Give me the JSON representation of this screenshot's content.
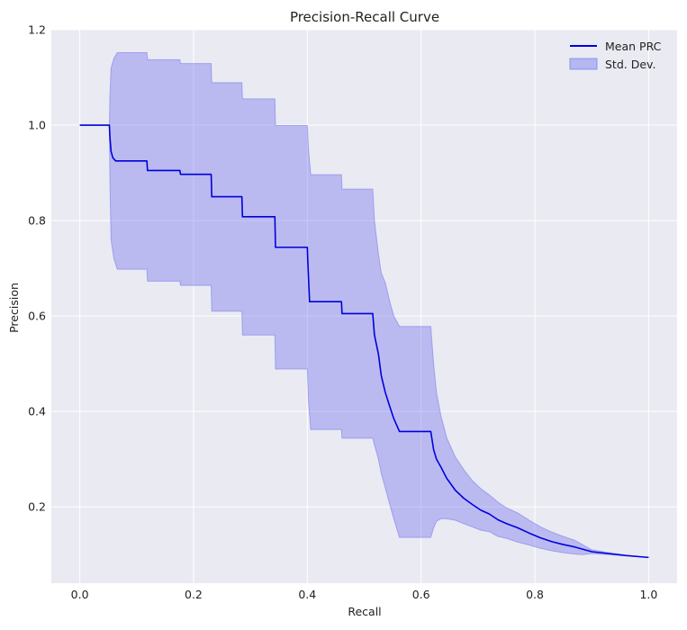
{
  "chart_data": {
    "type": "line",
    "title": "Precision-Recall Curve",
    "xlabel": "Recall",
    "ylabel": "Precision",
    "xlim": [
      -0.05,
      1.05
    ],
    "ylim": [
      0.04,
      1.2
    ],
    "grid": true,
    "legend_position": "top-right",
    "x_ticks": [
      0.0,
      0.2,
      0.4,
      0.6,
      0.8,
      1.0
    ],
    "x_tick_labels": [
      "0.0",
      "0.2",
      "0.4",
      "0.6",
      "0.8",
      "1.0"
    ],
    "y_ticks": [
      0.2,
      0.4,
      0.6,
      0.8,
      1.0,
      1.2
    ],
    "y_tick_labels": [
      "0.2",
      "0.4",
      "0.6",
      "0.8",
      "1.0",
      "1.2"
    ],
    "series": [
      {
        "name": "Mean PRC",
        "color": "#0000dd",
        "points": [
          [
            0.0,
            1.0
          ],
          [
            0.052,
            1.0
          ],
          [
            0.053,
            0.975
          ],
          [
            0.055,
            0.945
          ],
          [
            0.058,
            0.932
          ],
          [
            0.063,
            0.925
          ],
          [
            0.118,
            0.925
          ],
          [
            0.119,
            0.905
          ],
          [
            0.176,
            0.905
          ],
          [
            0.177,
            0.897
          ],
          [
            0.231,
            0.897
          ],
          [
            0.232,
            0.85
          ],
          [
            0.285,
            0.85
          ],
          [
            0.286,
            0.808
          ],
          [
            0.343,
            0.808
          ],
          [
            0.344,
            0.744
          ],
          [
            0.4,
            0.744
          ],
          [
            0.401,
            0.71
          ],
          [
            0.404,
            0.63
          ],
          [
            0.46,
            0.63
          ],
          [
            0.461,
            0.605
          ],
          [
            0.515,
            0.605
          ],
          [
            0.518,
            0.56
          ],
          [
            0.525,
            0.52
          ],
          [
            0.53,
            0.475
          ],
          [
            0.537,
            0.44
          ],
          [
            0.545,
            0.41
          ],
          [
            0.552,
            0.385
          ],
          [
            0.562,
            0.358
          ],
          [
            0.617,
            0.358
          ],
          [
            0.622,
            0.32
          ],
          [
            0.627,
            0.3
          ],
          [
            0.635,
            0.283
          ],
          [
            0.645,
            0.26
          ],
          [
            0.66,
            0.235
          ],
          [
            0.675,
            0.218
          ],
          [
            0.69,
            0.205
          ],
          [
            0.705,
            0.193
          ],
          [
            0.72,
            0.185
          ],
          [
            0.735,
            0.173
          ],
          [
            0.75,
            0.165
          ],
          [
            0.77,
            0.156
          ],
          [
            0.79,
            0.145
          ],
          [
            0.81,
            0.135
          ],
          [
            0.83,
            0.127
          ],
          [
            0.85,
            0.121
          ],
          [
            0.87,
            0.116
          ],
          [
            0.885,
            0.111
          ],
          [
            0.9,
            0.106
          ],
          [
            0.93,
            0.102
          ],
          [
            0.96,
            0.098
          ],
          [
            1.0,
            0.094
          ]
        ]
      }
    ],
    "bands": [
      {
        "name": "Std. Dev.",
        "color": "#7777ee",
        "points": [
          [
            0.052,
            1.0,
            1.0
          ],
          [
            0.053,
            0.88,
            1.06
          ],
          [
            0.055,
            0.76,
            1.12
          ],
          [
            0.06,
            0.72,
            1.14
          ],
          [
            0.066,
            0.698,
            1.152
          ],
          [
            0.118,
            0.698,
            1.152
          ],
          [
            0.119,
            0.673,
            1.137
          ],
          [
            0.176,
            0.673,
            1.137
          ],
          [
            0.177,
            0.664,
            1.129
          ],
          [
            0.231,
            0.664,
            1.129
          ],
          [
            0.232,
            0.61,
            1.089
          ],
          [
            0.285,
            0.61,
            1.089
          ],
          [
            0.286,
            0.56,
            1.055
          ],
          [
            0.343,
            0.56,
            1.055
          ],
          [
            0.344,
            0.489,
            0.999
          ],
          [
            0.4,
            0.489,
            0.999
          ],
          [
            0.402,
            0.42,
            0.95
          ],
          [
            0.406,
            0.362,
            0.896
          ],
          [
            0.46,
            0.362,
            0.896
          ],
          [
            0.461,
            0.344,
            0.866
          ],
          [
            0.515,
            0.344,
            0.866
          ],
          [
            0.518,
            0.33,
            0.8
          ],
          [
            0.525,
            0.3,
            0.73
          ],
          [
            0.53,
            0.27,
            0.69
          ],
          [
            0.537,
            0.24,
            0.67
          ],
          [
            0.545,
            0.205,
            0.63
          ],
          [
            0.552,
            0.175,
            0.6
          ],
          [
            0.562,
            0.136,
            0.578
          ],
          [
            0.617,
            0.136,
            0.578
          ],
          [
            0.622,
            0.156,
            0.5
          ],
          [
            0.627,
            0.17,
            0.44
          ],
          [
            0.635,
            0.175,
            0.39
          ],
          [
            0.645,
            0.175,
            0.345
          ],
          [
            0.66,
            0.172,
            0.305
          ],
          [
            0.675,
            0.165,
            0.278
          ],
          [
            0.69,
            0.158,
            0.255
          ],
          [
            0.705,
            0.151,
            0.238
          ],
          [
            0.72,
            0.148,
            0.225
          ],
          [
            0.735,
            0.138,
            0.21
          ],
          [
            0.75,
            0.134,
            0.198
          ],
          [
            0.77,
            0.126,
            0.187
          ],
          [
            0.79,
            0.12,
            0.172
          ],
          [
            0.81,
            0.113,
            0.158
          ],
          [
            0.83,
            0.108,
            0.147
          ],
          [
            0.85,
            0.104,
            0.138
          ],
          [
            0.87,
            0.101,
            0.13
          ],
          [
            0.885,
            0.1,
            0.12
          ],
          [
            0.9,
            0.102,
            0.11
          ],
          [
            0.93,
            0.1,
            0.104
          ],
          [
            0.96,
            0.097,
            0.099
          ],
          [
            1.0,
            0.094,
            0.094
          ]
        ]
      }
    ]
  }
}
